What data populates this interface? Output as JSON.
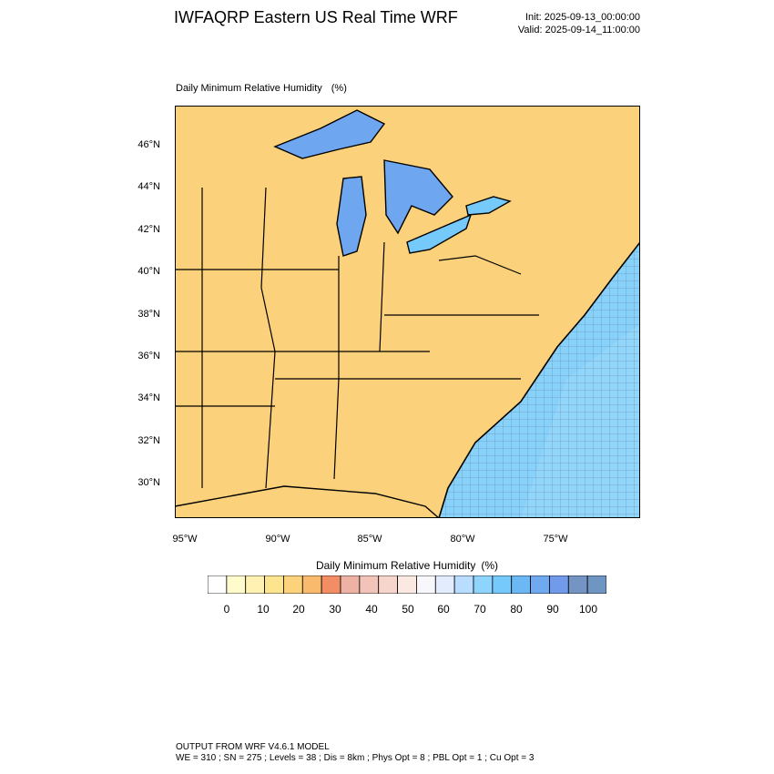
{
  "header": {
    "title": "IWFAQRP Eastern US Real Time WRF",
    "init": "Init: 2025-09-13_00:00:00",
    "valid": "Valid: 2025-09-14_11:00:00"
  },
  "plot": {
    "field_title": "Daily Minimum Relative Humidity",
    "units": "(%)",
    "lat_labels": [
      "46°N",
      "44°N",
      "42°N",
      "40°N",
      "38°N",
      "36°N",
      "34°N",
      "32°N",
      "30°N"
    ],
    "lon_labels": [
      "95°W",
      "90°W",
      "85°W",
      "80°W",
      "75°W"
    ]
  },
  "colorbar": {
    "title": "Daily Minimum Relative Humidity",
    "units": "(%)",
    "labels": [
      "0",
      "10",
      "20",
      "30",
      "40",
      "50",
      "60",
      "70",
      "80",
      "90",
      "100"
    ],
    "colors": [
      "#ffffff",
      "#fffbcc",
      "#fef1b1",
      "#fde58f",
      "#fcd37b",
      "#f9ba6e",
      "#f38e64",
      "#eeb2a5",
      "#f2c3b8",
      "#f6d6cc",
      "#fae8e1",
      "#f8f8fc",
      "#e2ecfd",
      "#b9ddfe",
      "#8ed4fd",
      "#75c9fb",
      "#6bb8f4",
      "#6fa9ef",
      "#729aea",
      "#7495c4",
      "#6f95c3"
    ]
  },
  "footer": {
    "line1": "OUTPUT FROM WRF V4.6.1 MODEL",
    "line2": "WE = 310 ; SN = 275 ; Levels = 38 ; Dis = 8km ; Phys Opt = 8 ; PBL Opt = 1 ; Cu Opt = 3"
  }
}
